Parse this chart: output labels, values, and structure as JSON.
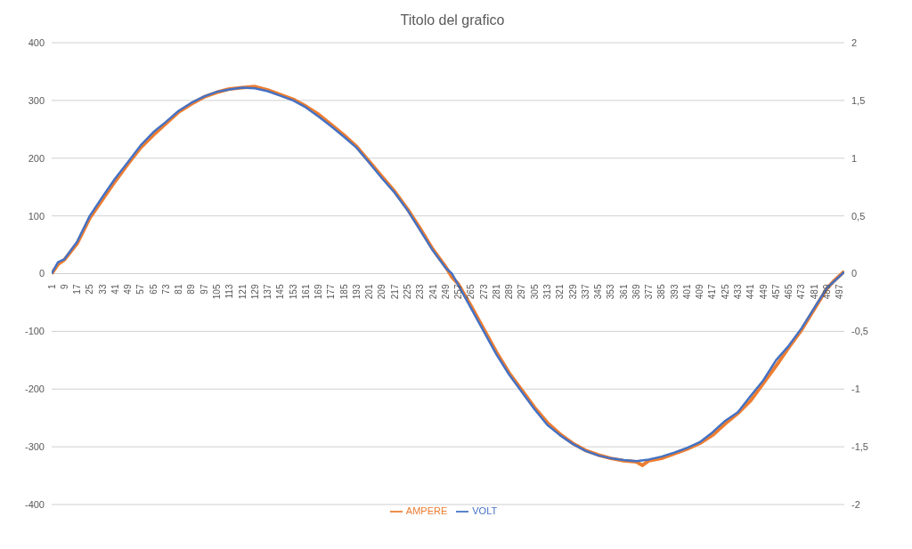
{
  "chart_data": {
    "type": "line",
    "title": "Titolo del grafico",
    "xlim": [
      1,
      500
    ],
    "xticks": [
      1,
      9,
      17,
      25,
      33,
      41,
      49,
      57,
      65,
      73,
      81,
      89,
      97,
      105,
      113,
      121,
      129,
      137,
      145,
      153,
      161,
      169,
      177,
      185,
      193,
      201,
      209,
      217,
      225,
      233,
      241,
      249,
      257,
      265,
      273,
      281,
      289,
      297,
      305,
      313,
      321,
      329,
      337,
      345,
      353,
      361,
      369,
      377,
      385,
      393,
      401,
      409,
      417,
      425,
      433,
      441,
      449,
      457,
      465,
      473,
      481,
      489,
      497
    ],
    "ylim": [
      -400,
      400
    ],
    "yticks": [
      -400,
      -300,
      -200,
      -100,
      0,
      100,
      200,
      300,
      400
    ],
    "y2lim": [
      -2,
      2
    ],
    "y2ticks": [
      {
        "value": -2,
        "label": "-2"
      },
      {
        "value": -1.5,
        "label": "-1,5"
      },
      {
        "value": -1,
        "label": "-1"
      },
      {
        "value": -0.5,
        "label": "-0,5"
      },
      {
        "value": 0,
        "label": "0"
      },
      {
        "value": 0.5,
        "label": "0,5"
      },
      {
        "value": 1,
        "label": "1"
      },
      {
        "value": 1.5,
        "label": "1,5"
      },
      {
        "value": 2,
        "label": "2"
      }
    ],
    "grid": "y",
    "legend": "bottom",
    "marker": "none",
    "line_style": "solid",
    "series": [
      {
        "name": "AMPERE",
        "color": "#ed7d31",
        "axis": "y2",
        "x": [
          1,
          5,
          9,
          17,
          25,
          33,
          41,
          49,
          57,
          65,
          73,
          81,
          89,
          97,
          105,
          113,
          121,
          129,
          137,
          145,
          153,
          161,
          169,
          177,
          185,
          193,
          201,
          209,
          217,
          225,
          233,
          241,
          249,
          253,
          257,
          265,
          273,
          281,
          289,
          297,
          305,
          313,
          321,
          329,
          337,
          345,
          353,
          361,
          369,
          373,
          377,
          385,
          393,
          401,
          409,
          417,
          425,
          433,
          441,
          449,
          457,
          465,
          473,
          481,
          489,
          493,
          500
        ],
        "values": [
          0,
          0.08,
          0.12,
          0.26,
          0.48,
          0.64,
          0.8,
          0.95,
          1.09,
          1.2,
          1.3,
          1.4,
          1.47,
          1.53,
          1.57,
          1.6,
          1.61,
          1.62,
          1.59,
          1.55,
          1.51,
          1.45,
          1.38,
          1.29,
          1.2,
          1.1,
          0.97,
          0.84,
          0.71,
          0.56,
          0.39,
          0.21,
          0.06,
          -0.03,
          -0.09,
          -0.28,
          -0.48,
          -0.68,
          -0.86,
          -1.01,
          -1.16,
          -1.29,
          -1.39,
          -1.47,
          -1.53,
          -1.57,
          -1.6,
          -1.62,
          -1.63,
          -1.66,
          -1.62,
          -1.6,
          -1.56,
          -1.52,
          -1.47,
          -1.4,
          -1.3,
          -1.21,
          -1.1,
          -0.95,
          -0.8,
          -0.64,
          -0.49,
          -0.31,
          -0.13,
          -0.07,
          0.02
        ]
      },
      {
        "name": "VOLT",
        "color": "#4472c4",
        "x": [
          1,
          5,
          9,
          17,
          25,
          33,
          41,
          49,
          57,
          65,
          73,
          81,
          89,
          97,
          105,
          113,
          121,
          129,
          137,
          145,
          153,
          161,
          169,
          177,
          185,
          193,
          201,
          209,
          217,
          225,
          233,
          241,
          249,
          253,
          257,
          265,
          273,
          281,
          289,
          297,
          305,
          313,
          321,
          329,
          337,
          345,
          353,
          361,
          369,
          377,
          385,
          393,
          401,
          409,
          417,
          425,
          433,
          441,
          449,
          457,
          465,
          473,
          481,
          489,
          493,
          500
        ],
        "values": [
          0,
          20,
          25,
          55,
          100,
          133,
          165,
          193,
          222,
          245,
          263,
          282,
          296,
          307,
          315,
          319,
          322,
          321,
          316,
          308,
          300,
          288,
          272,
          255,
          237,
          218,
          192,
          165,
          140,
          110,
          75,
          40,
          10,
          0,
          -20,
          -60,
          -100,
          -140,
          -175,
          -205,
          -235,
          -262,
          -280,
          -295,
          -307,
          -315,
          -320,
          -323,
          -325,
          -322,
          -317,
          -310,
          -302,
          -292,
          -275,
          -255,
          -240,
          -212,
          -185,
          -150,
          -125,
          -95,
          -60,
          -25,
          -15,
          3
        ]
      }
    ]
  }
}
